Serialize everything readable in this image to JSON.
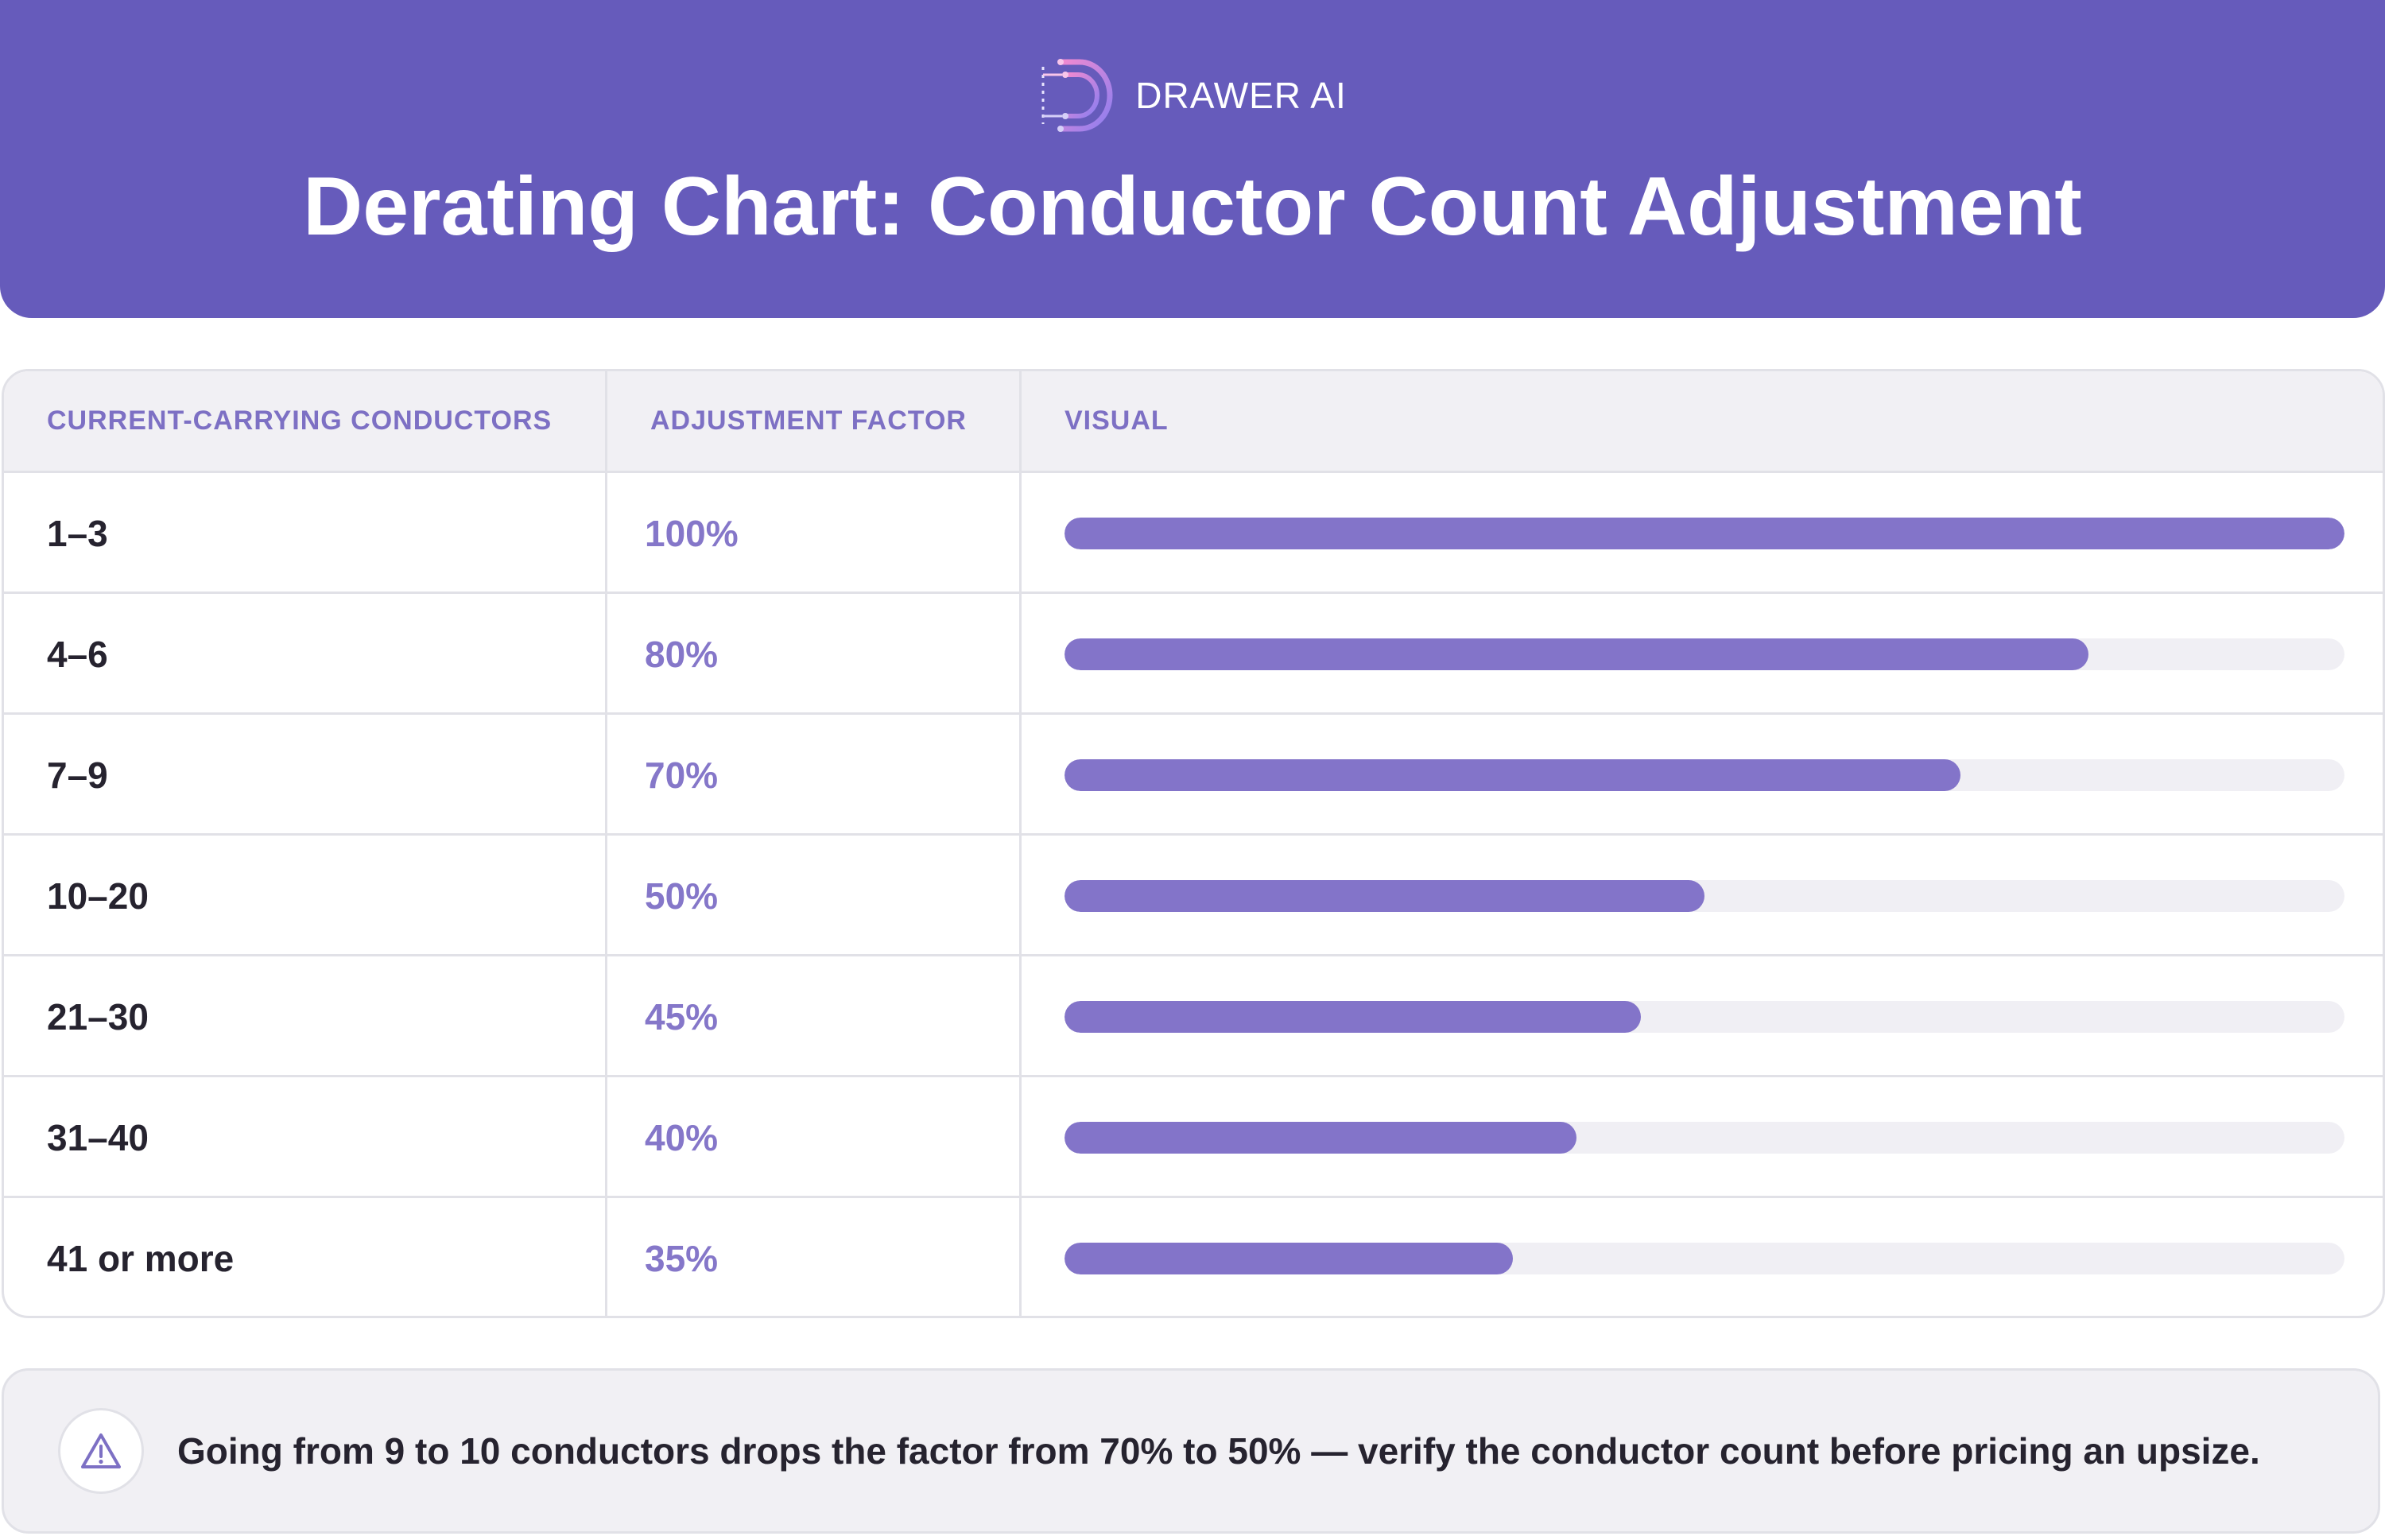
{
  "header": {
    "brand_name": "DRAWER AI",
    "title": "Derating Chart: Conductor Count Adjustment"
  },
  "table": {
    "columns": [
      "CURRENT-CARRYING CONDUCTORS",
      "ADJUSTMENT FACTOR",
      "VISUAL"
    ],
    "rows": [
      {
        "conductors": "1–3",
        "factor": "100%",
        "value": 100
      },
      {
        "conductors": "4–6",
        "factor": "80%",
        "value": 80
      },
      {
        "conductors": "7–9",
        "factor": "70%",
        "value": 70
      },
      {
        "conductors": "10–20",
        "factor": "50%",
        "value": 50
      },
      {
        "conductors": "21–30",
        "factor": "45%",
        "value": 45
      },
      {
        "conductors": "31–40",
        "factor": "40%",
        "value": 40
      },
      {
        "conductors": "41 or more",
        "factor": "35%",
        "value": 35
      }
    ]
  },
  "note": {
    "icon": "warning-icon",
    "text": "Going from 9 to 10 conductors drops the factor from 70% to 50% — verify the conductor count before pricing an upsize."
  },
  "colors": {
    "header_bg": "#665bbb",
    "accent": "#8374c9",
    "track": "#f0eff4",
    "text_dark": "#26232f"
  }
}
